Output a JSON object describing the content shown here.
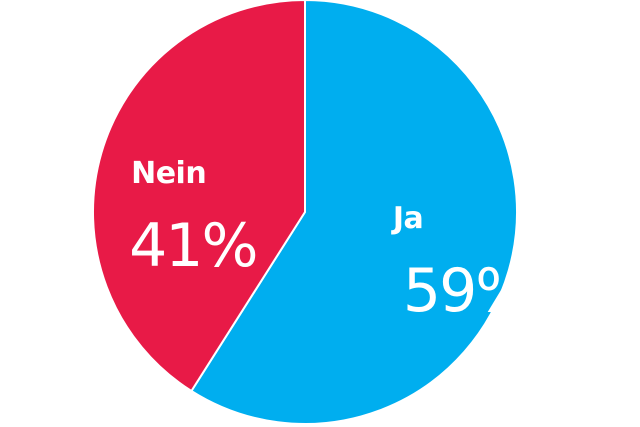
{
  "chart_data": {
    "type": "pie",
    "title": "",
    "series": [
      {
        "name": "Ja",
        "value": 59,
        "label": "Ja",
        "value_label": "59%",
        "color": "#00aeef"
      },
      {
        "name": "Nein",
        "value": 41,
        "label": "Nein",
        "value_label": "41%",
        "color": "#e81a47"
      }
    ],
    "start": "top",
    "direction": "clockwise",
    "legend": "none"
  }
}
